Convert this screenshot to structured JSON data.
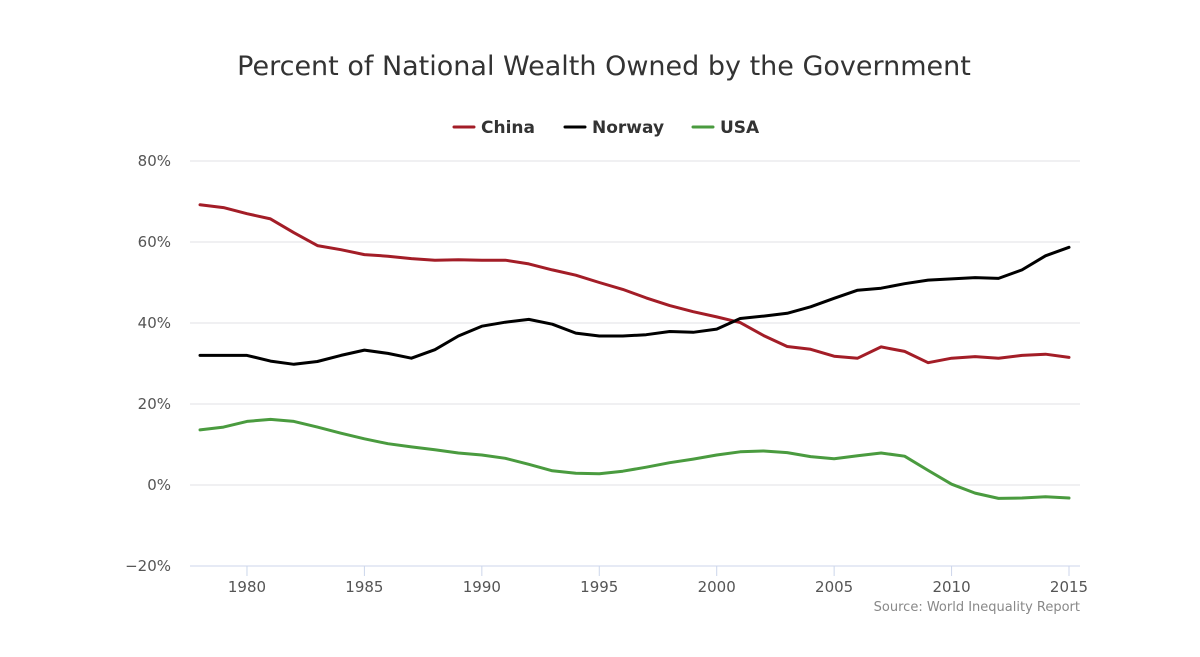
{
  "chart_data": {
    "type": "line",
    "title": "Percent of National Wealth Owned by the Government",
    "source": "Source: World Inequality Report",
    "xlabel": "",
    "ylabel": "",
    "xlim": [
      1978,
      2015
    ],
    "ylim": [
      -20,
      80
    ],
    "x_ticks": [
      1980,
      1985,
      1990,
      1995,
      2000,
      2005,
      2010,
      2015
    ],
    "y_ticks": [
      -20,
      0,
      20,
      40,
      60,
      80
    ],
    "y_tick_labels": [
      "−20%",
      "0%",
      "20%",
      "40%",
      "60%",
      "80%"
    ],
    "grid": "horizontal",
    "legend_position": "top-center",
    "x": [
      1978,
      1979,
      1980,
      1981,
      1982,
      1983,
      1984,
      1985,
      1986,
      1987,
      1988,
      1989,
      1990,
      1991,
      1992,
      1993,
      1994,
      1995,
      1996,
      1997,
      1998,
      1999,
      2000,
      2001,
      2002,
      2003,
      2004,
      2005,
      2006,
      2007,
      2008,
      2009,
      2010,
      2011,
      2012,
      2013,
      2014,
      2015
    ],
    "series": [
      {
        "name": "China",
        "color": "#a31d27",
        "values": [
          69.2,
          68.5,
          67.0,
          65.7,
          62.3,
          59.1,
          58.1,
          56.9,
          56.5,
          55.9,
          55.5,
          55.6,
          55.5,
          55.5,
          54.6,
          53.1,
          51.8,
          50.0,
          48.3,
          46.2,
          44.3,
          42.8,
          41.5,
          40.1,
          36.9,
          34.2,
          33.5,
          31.8,
          31.3,
          34.1,
          33.0,
          30.2,
          31.3,
          31.7,
          31.3,
          32.0,
          32.3,
          31.5
        ]
      },
      {
        "name": "Norway",
        "color": "#000000",
        "values": [
          32.0,
          32.0,
          32.0,
          30.6,
          29.8,
          30.5,
          32.0,
          33.3,
          32.5,
          31.3,
          33.4,
          36.8,
          39.2,
          40.2,
          40.9,
          39.7,
          37.5,
          36.8,
          36.8,
          37.1,
          37.9,
          37.7,
          38.5,
          41.1,
          41.7,
          42.4,
          44.0,
          46.1,
          48.1,
          48.6,
          49.7,
          50.6,
          50.9,
          51.2,
          51.0,
          53.1,
          56.6,
          58.7
        ]
      },
      {
        "name": "USA",
        "color": "#4a9b3f",
        "values": [
          13.6,
          14.3,
          15.7,
          16.2,
          15.7,
          14.3,
          12.8,
          11.4,
          10.2,
          9.4,
          8.7,
          7.9,
          7.4,
          6.6,
          5.1,
          3.5,
          2.9,
          2.8,
          3.4,
          4.4,
          5.5,
          6.4,
          7.4,
          8.2,
          8.4,
          8.0,
          7.0,
          6.5,
          7.2,
          7.9,
          7.1,
          3.6,
          0.2,
          -2.0,
          -3.3,
          -3.2,
          -2.9,
          -3.2
        ]
      }
    ]
  }
}
